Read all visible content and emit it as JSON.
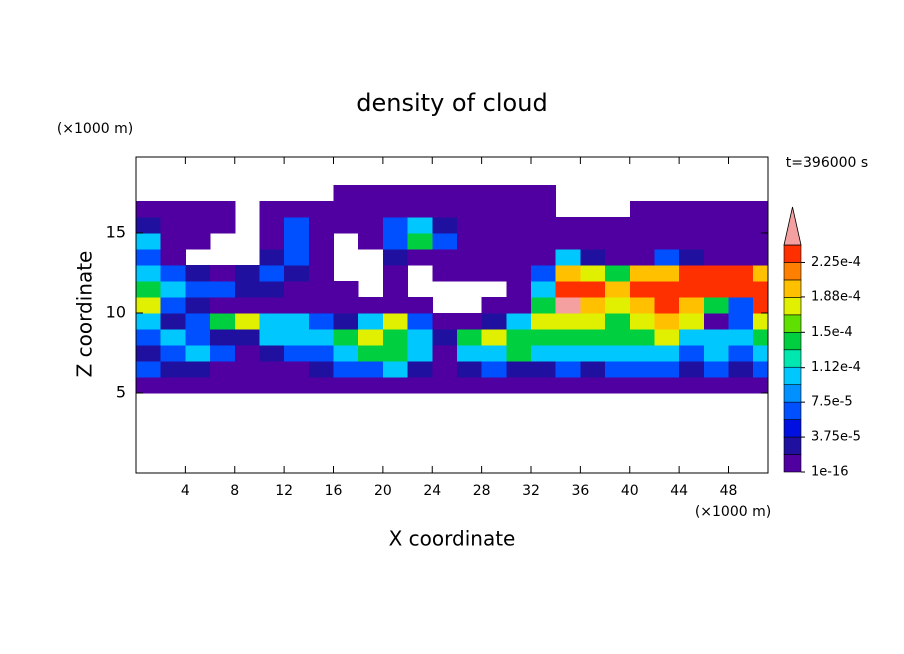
{
  "chart_data": {
    "type": "contour",
    "title": "density of cloud",
    "time_label": "t=396000 s",
    "xlabel": "X coordinate",
    "ylabel": "Z coordinate",
    "xunit": "(×1000 m)",
    "yunit": "(×1000 m)",
    "xlim": [
      0,
      51.2
    ],
    "ylim": [
      0,
      19.75
    ],
    "xticks": [
      4,
      8,
      12,
      16,
      20,
      24,
      28,
      32,
      36,
      40,
      44,
      48
    ],
    "yticks": [
      5,
      10,
      15
    ],
    "x": [
      1,
      3,
      5,
      7,
      9,
      11,
      13,
      15,
      17,
      19,
      21,
      23,
      25,
      27,
      29,
      31,
      33,
      35,
      37,
      39,
      41,
      43,
      45,
      47,
      49,
      51
    ],
    "z": [
      5.5,
      6.5,
      7.5,
      8.5,
      9.5,
      10.5,
      11.5,
      12.5,
      13.5,
      14.5,
      15.5,
      16.5,
      17.5
    ],
    "values": [
      [
        5e-06,
        5e-06,
        5e-06,
        5e-06,
        5e-06,
        5e-06,
        5e-06,
        5e-06,
        5e-06,
        5e-06,
        5e-06,
        5e-06,
        5e-06,
        5e-06,
        5e-06,
        5e-06,
        5e-06,
        5e-06,
        5e-06,
        5e-06,
        5e-06,
        5e-06,
        5e-06,
        5e-06,
        5e-06,
        5e-06
      ],
      [
        6e-05,
        2.5e-05,
        2.5e-05,
        5e-06,
        5e-06,
        5e-06,
        5e-06,
        2.5e-05,
        6e-05,
        6e-05,
        0.0001,
        2.5e-05,
        5e-06,
        2.5e-05,
        6e-05,
        2.5e-05,
        2.5e-05,
        6e-05,
        2.5e-05,
        6e-05,
        6e-05,
        6e-05,
        2.5e-05,
        6e-05,
        2.5e-05,
        6e-05
      ],
      [
        2.5e-05,
        6e-05,
        0.0001,
        6e-05,
        5e-06,
        2.5e-05,
        6e-05,
        6e-05,
        0.0001,
        0.000135,
        0.000135,
        0.0001,
        5e-06,
        0.0001,
        0.0001,
        0.000135,
        0.0001,
        0.0001,
        0.0001,
        0.0001,
        0.0001,
        0.0001,
        6e-05,
        0.0001,
        6e-05,
        0.0001
      ],
      [
        6e-05,
        0.0001,
        6e-05,
        2.5e-05,
        2.5e-05,
        0.0001,
        0.0001,
        0.0001,
        0.000135,
        0.00017,
        0.000135,
        0.0001,
        2.5e-05,
        0.000135,
        0.00017,
        0.000135,
        0.000135,
        0.000135,
        0.000135,
        0.000135,
        0.000135,
        0.00017,
        0.0001,
        0.0001,
        0.0001,
        0.000135
      ],
      [
        0.0001,
        2.5e-05,
        6e-05,
        0.000135,
        0.00017,
        0.0001,
        0.0001,
        6e-05,
        2.5e-05,
        0.0001,
        0.00017,
        6e-05,
        5e-06,
        5e-06,
        2.5e-05,
        0.0001,
        0.00017,
        0.00017,
        0.00017,
        0.000135,
        0.00017,
        0.0002,
        0.00017,
        5e-06,
        6e-05,
        0.00017
      ],
      [
        0.00017,
        6e-05,
        2.5e-05,
        5e-06,
        5e-06,
        5e-06,
        5e-06,
        5e-06,
        5e-06,
        5e-06,
        5e-06,
        5e-06,
        null,
        null,
        5e-06,
        5e-06,
        0.000135,
        0.00025,
        0.0002,
        0.00017,
        0.0002,
        0.00023,
        0.0002,
        0.000135,
        6e-05,
        0.00023
      ],
      [
        0.000135,
        0.0001,
        6e-05,
        6e-05,
        2.5e-05,
        2.5e-05,
        5e-06,
        5e-06,
        5e-06,
        null,
        5e-06,
        null,
        null,
        null,
        null,
        5e-06,
        0.0001,
        0.00023,
        0.00023,
        0.0002,
        0.00023,
        0.00023,
        0.00023,
        0.00023,
        0.00023,
        0.00023
      ],
      [
        0.0001,
        6e-05,
        2.5e-05,
        5e-06,
        2.5e-05,
        6e-05,
        2.5e-05,
        5e-06,
        null,
        null,
        5e-06,
        null,
        5e-06,
        5e-06,
        5e-06,
        5e-06,
        6e-05,
        0.0002,
        0.00017,
        0.000135,
        0.0002,
        0.0002,
        0.00023,
        0.00023,
        0.00023,
        0.0002
      ],
      [
        6e-05,
        5e-06,
        null,
        null,
        null,
        2.5e-05,
        6e-05,
        5e-06,
        null,
        null,
        2.5e-05,
        5e-06,
        5e-06,
        5e-06,
        5e-06,
        5e-06,
        5e-06,
        0.0001,
        2.5e-05,
        5e-06,
        5e-06,
        6e-05,
        2.5e-05,
        5e-06,
        5e-06,
        5e-06
      ],
      [
        0.0001,
        5e-06,
        5e-06,
        null,
        null,
        5e-06,
        6e-05,
        5e-06,
        null,
        5e-06,
        6e-05,
        0.000135,
        6e-05,
        5e-06,
        5e-06,
        5e-06,
        5e-06,
        5e-06,
        5e-06,
        5e-06,
        5e-06,
        5e-06,
        5e-06,
        5e-06,
        5e-06,
        5e-06
      ],
      [
        2.5e-05,
        5e-06,
        5e-06,
        5e-06,
        null,
        5e-06,
        6e-05,
        5e-06,
        5e-06,
        5e-06,
        6e-05,
        0.0001,
        2.5e-05,
        5e-06,
        5e-06,
        5e-06,
        5e-06,
        5e-06,
        5e-06,
        5e-06,
        5e-06,
        5e-06,
        5e-06,
        5e-06,
        5e-06,
        5e-06
      ],
      [
        5e-06,
        5e-06,
        5e-06,
        5e-06,
        null,
        5e-06,
        5e-06,
        5e-06,
        5e-06,
        5e-06,
        5e-06,
        5e-06,
        5e-06,
        5e-06,
        5e-06,
        5e-06,
        5e-06,
        null,
        null,
        null,
        5e-06,
        5e-06,
        5e-06,
        5e-06,
        5e-06,
        5e-06
      ],
      [
        null,
        null,
        null,
        null,
        null,
        null,
        null,
        null,
        5e-06,
        5e-06,
        5e-06,
        5e-06,
        5e-06,
        5e-06,
        5e-06,
        5e-06,
        5e-06,
        null,
        null,
        null,
        null,
        null,
        null,
        null,
        null,
        null
      ]
    ],
    "clim": [
      0,
      0.00024375
    ],
    "colors": [
      "#5000a0",
      "#2010a0",
      "#0010e0",
      "#0050ff",
      "#0090ff",
      "#00c8ff",
      "#00e8b0",
      "#00d040",
      "#60e000",
      "#e0f000",
      "#ffc000",
      "#ff8000",
      "#ff3000"
    ],
    "over_color": "#f4a0a0",
    "colorbar_ticks": [
      {
        "value": 1e-16,
        "label": "1e-16"
      },
      {
        "value": 3.75e-05,
        "label": "3.75e-5"
      },
      {
        "value": 7.5e-05,
        "label": "7.5e-5"
      },
      {
        "value": 0.000112,
        "label": "1.12e-4"
      },
      {
        "value": 0.00015,
        "label": "1.5e-4"
      },
      {
        "value": 0.000188,
        "label": "1.88e-4"
      },
      {
        "value": 0.000225,
        "label": "2.25e-4"
      }
    ]
  }
}
